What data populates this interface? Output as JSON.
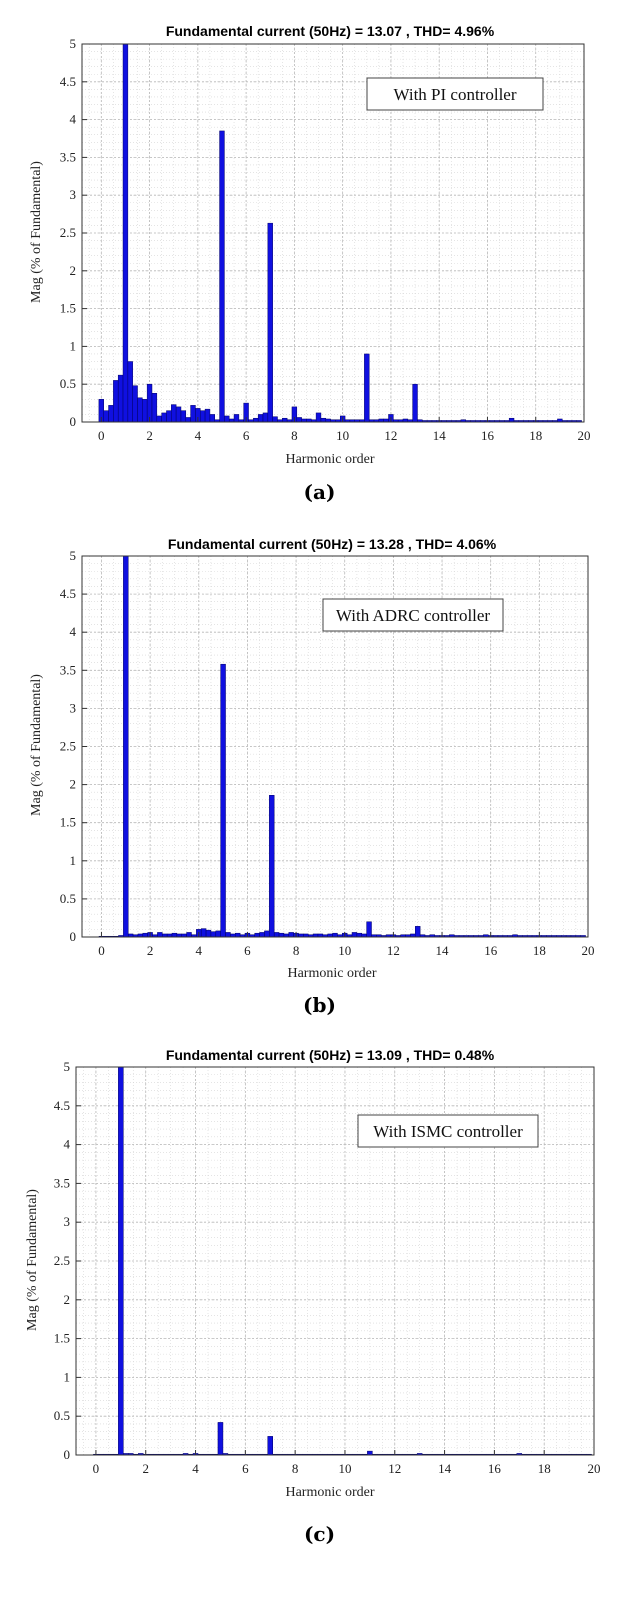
{
  "chart_data": [
    {
      "id": "a",
      "type": "bar",
      "title": "Fundamental current (50Hz) = 13.07 , THD= 4.96%",
      "xlabel": "Harmonic order",
      "ylabel": "Mag (% of Fundamental)",
      "annotation": "With PI controller",
      "caption": "(a)",
      "xlim": [
        -0.8,
        20
      ],
      "ylim": [
        0,
        5
      ],
      "xticks": [
        0,
        2,
        4,
        6,
        8,
        10,
        12,
        14,
        16,
        18,
        20
      ],
      "yticks": [
        0,
        0.5,
        1,
        1.5,
        2,
        2.5,
        3,
        3.5,
        4,
        4.5,
        5
      ],
      "grid": true,
      "bar_width": 0.2,
      "bar_color": "#1010e0",
      "x": [
        0,
        0.2,
        0.4,
        0.6,
        0.8,
        1.0,
        1.2,
        1.4,
        1.6,
        1.8,
        2.0,
        2.2,
        2.4,
        2.6,
        2.8,
        3.0,
        3.2,
        3.4,
        3.6,
        3.8,
        4.0,
        4.2,
        4.4,
        4.6,
        4.8,
        5.0,
        5.2,
        5.4,
        5.6,
        5.8,
        6.0,
        6.2,
        6.4,
        6.6,
        6.8,
        7.0,
        7.2,
        7.4,
        7.6,
        7.8,
        8.0,
        8.2,
        8.4,
        8.6,
        8.8,
        9.0,
        9.2,
        9.4,
        9.6,
        9.8,
        10.0,
        10.2,
        10.4,
        10.6,
        10.8,
        11.0,
        11.2,
        11.4,
        11.6,
        11.8,
        12.0,
        12.2,
        12.4,
        12.6,
        12.8,
        13.0,
        13.2,
        13.4,
        13.6,
        13.8,
        14.0,
        14.2,
        14.4,
        14.6,
        14.8,
        15.0,
        15.2,
        15.4,
        15.6,
        15.8,
        16.0,
        16.2,
        16.4,
        16.6,
        16.8,
        17.0,
        17.2,
        17.4,
        17.6,
        17.8,
        18.0,
        18.2,
        18.4,
        18.6,
        18.8,
        19.0,
        19.2,
        19.4,
        19.6,
        19.8
      ],
      "values": [
        0.3,
        0.15,
        0.22,
        0.55,
        0.62,
        5.0,
        0.8,
        0.48,
        0.32,
        0.3,
        0.5,
        0.38,
        0.08,
        0.12,
        0.15,
        0.23,
        0.2,
        0.15,
        0.06,
        0.22,
        0.18,
        0.15,
        0.17,
        0.1,
        0.03,
        3.85,
        0.08,
        0.04,
        0.1,
        0.03,
        0.25,
        0.03,
        0.05,
        0.1,
        0.12,
        2.63,
        0.07,
        0.03,
        0.05,
        0.03,
        0.2,
        0.06,
        0.04,
        0.04,
        0.03,
        0.12,
        0.05,
        0.04,
        0.03,
        0.03,
        0.08,
        0.03,
        0.03,
        0.03,
        0.03,
        0.9,
        0.03,
        0.03,
        0.04,
        0.04,
        0.1,
        0.03,
        0.03,
        0.04,
        0.03,
        0.5,
        0.03,
        0.02,
        0.02,
        0.02,
        0.02,
        0.02,
        0.02,
        0.02,
        0.02,
        0.03,
        0.02,
        0.02,
        0.02,
        0.02,
        0.02,
        0.02,
        0.02,
        0.02,
        0.02,
        0.05,
        0.02,
        0.02,
        0.02,
        0.02,
        0.02,
        0.02,
        0.02,
        0.02,
        0.02,
        0.04,
        0.02,
        0.02,
        0.02,
        0.02
      ]
    },
    {
      "id": "b",
      "type": "bar",
      "title": "Fundamental current (50Hz) = 13.28 , THD= 4.06%",
      "xlabel": "Harmonic order",
      "ylabel": "Mag (% of Fundamental)",
      "annotation": "With ADRC controller",
      "caption": "(b)",
      "xlim": [
        -0.8,
        20
      ],
      "ylim": [
        0,
        5
      ],
      "xticks": [
        0,
        2,
        4,
        6,
        8,
        10,
        12,
        14,
        16,
        18,
        20
      ],
      "yticks": [
        0,
        0.5,
        1,
        1.5,
        2,
        2.5,
        3,
        3.5,
        4,
        4.5,
        5
      ],
      "grid": true,
      "bar_width": 0.2,
      "bar_color": "#1010e0",
      "x": [
        0,
        0.2,
        0.4,
        0.6,
        0.8,
        1.0,
        1.2,
        1.4,
        1.6,
        1.8,
        2.0,
        2.2,
        2.4,
        2.6,
        2.8,
        3.0,
        3.2,
        3.4,
        3.6,
        3.8,
        4.0,
        4.2,
        4.4,
        4.6,
        4.8,
        5.0,
        5.2,
        5.4,
        5.6,
        5.8,
        6.0,
        6.2,
        6.4,
        6.6,
        6.8,
        7.0,
        7.2,
        7.4,
        7.6,
        7.8,
        8.0,
        8.2,
        8.4,
        8.6,
        8.8,
        9.0,
        9.2,
        9.4,
        9.6,
        9.8,
        10.0,
        10.2,
        10.4,
        10.6,
        10.8,
        11.0,
        11.2,
        11.4,
        11.6,
        11.8,
        12.0,
        12.2,
        12.4,
        12.6,
        12.8,
        13.0,
        13.2,
        13.4,
        13.6,
        13.8,
        14.0,
        14.2,
        14.4,
        14.6,
        14.8,
        15.0,
        15.2,
        15.4,
        15.6,
        15.8,
        16.0,
        16.2,
        16.4,
        16.6,
        16.8,
        17.0,
        17.2,
        17.4,
        17.6,
        17.8,
        18.0,
        18.2,
        18.4,
        18.6,
        18.8,
        19.0,
        19.2,
        19.4,
        19.6,
        19.8
      ],
      "values": [
        0.01,
        0.01,
        0.01,
        0.01,
        0.02,
        5.0,
        0.04,
        0.03,
        0.04,
        0.05,
        0.06,
        0.03,
        0.06,
        0.04,
        0.04,
        0.05,
        0.04,
        0.04,
        0.06,
        0.03,
        0.1,
        0.11,
        0.09,
        0.07,
        0.08,
        3.58,
        0.06,
        0.04,
        0.05,
        0.03,
        0.05,
        0.03,
        0.05,
        0.06,
        0.08,
        1.86,
        0.06,
        0.05,
        0.04,
        0.06,
        0.05,
        0.04,
        0.04,
        0.03,
        0.04,
        0.04,
        0.03,
        0.04,
        0.05,
        0.03,
        0.05,
        0.03,
        0.06,
        0.05,
        0.04,
        0.2,
        0.03,
        0.03,
        0.02,
        0.03,
        0.03,
        0.02,
        0.03,
        0.03,
        0.04,
        0.14,
        0.03,
        0.02,
        0.03,
        0.02,
        0.02,
        0.02,
        0.03,
        0.02,
        0.02,
        0.02,
        0.02,
        0.02,
        0.02,
        0.03,
        0.02,
        0.02,
        0.02,
        0.02,
        0.02,
        0.03,
        0.02,
        0.02,
        0.02,
        0.02,
        0.02,
        0.02,
        0.02,
        0.02,
        0.02,
        0.02,
        0.02,
        0.02,
        0.02,
        0.02
      ]
    },
    {
      "id": "c",
      "type": "bar",
      "title": "Fundamental current (50Hz) = 13.09 , THD= 0.48%",
      "xlabel": "Harmonic order",
      "ylabel": "Mag (% of Fundamental)",
      "annotation": "With ISMC controller",
      "caption": "(c)",
      "xlim": [
        -0.8,
        20
      ],
      "ylim": [
        0,
        5
      ],
      "xticks": [
        0,
        2,
        4,
        6,
        8,
        10,
        12,
        14,
        16,
        18,
        20
      ],
      "yticks": [
        0,
        0.5,
        1,
        1.5,
        2,
        2.5,
        3,
        3.5,
        4,
        4.5,
        5
      ],
      "grid": true,
      "bar_width": 0.2,
      "bar_color": "#1010e0",
      "x": [
        0,
        0.2,
        0.4,
        0.6,
        0.8,
        1.0,
        1.2,
        1.4,
        1.6,
        1.8,
        2.0,
        2.2,
        2.4,
        2.6,
        2.8,
        3.0,
        3.2,
        3.4,
        3.6,
        3.8,
        4.0,
        4.2,
        4.4,
        4.6,
        4.8,
        5.0,
        5.2,
        5.4,
        5.6,
        5.8,
        6.0,
        6.2,
        6.4,
        6.6,
        6.8,
        7.0,
        7.2,
        7.4,
        7.6,
        7.8,
        8.0,
        8.2,
        8.4,
        8.6,
        8.8,
        9.0,
        9.2,
        9.4,
        9.6,
        9.8,
        10.0,
        10.2,
        10.4,
        10.6,
        10.8,
        11.0,
        11.2,
        11.4,
        11.6,
        11.8,
        12.0,
        12.2,
        12.4,
        12.6,
        12.8,
        13.0,
        13.2,
        13.4,
        13.6,
        13.8,
        14.0,
        14.2,
        14.4,
        14.6,
        14.8,
        15.0,
        15.2,
        15.4,
        15.6,
        15.8,
        16.0,
        16.2,
        16.4,
        16.6,
        16.8,
        17.0,
        17.2,
        17.4,
        17.6,
        17.8,
        18.0,
        18.2,
        18.4,
        18.6,
        18.8,
        19.0,
        19.2,
        19.4,
        19.6,
        19.8
      ],
      "values": [
        0.01,
        0.01,
        0.01,
        0.01,
        0.01,
        5.0,
        0.02,
        0.02,
        0.01,
        0.02,
        0.01,
        0.01,
        0.01,
        0.01,
        0.01,
        0.01,
        0.01,
        0.01,
        0.02,
        0.01,
        0.02,
        0.01,
        0.01,
        0.01,
        0.01,
        0.42,
        0.02,
        0.01,
        0.01,
        0.01,
        0.01,
        0.01,
        0.01,
        0.01,
        0.01,
        0.24,
        0.01,
        0.01,
        0.01,
        0.01,
        0.01,
        0.01,
        0.01,
        0.01,
        0.01,
        0.01,
        0.01,
        0.01,
        0.01,
        0.01,
        0.01,
        0.01,
        0.01,
        0.01,
        0.01,
        0.05,
        0.01,
        0.01,
        0.01,
        0.01,
        0.01,
        0.01,
        0.01,
        0.01,
        0.01,
        0.02,
        0.01,
        0.01,
        0.01,
        0.01,
        0.01,
        0.01,
        0.01,
        0.01,
        0.01,
        0.01,
        0.01,
        0.01,
        0.01,
        0.01,
        0.01,
        0.01,
        0.01,
        0.01,
        0.01,
        0.02,
        0.01,
        0.01,
        0.01,
        0.01,
        0.01,
        0.01,
        0.01,
        0.01,
        0.01,
        0.01,
        0.01,
        0.01,
        0.01,
        0.01
      ]
    }
  ]
}
